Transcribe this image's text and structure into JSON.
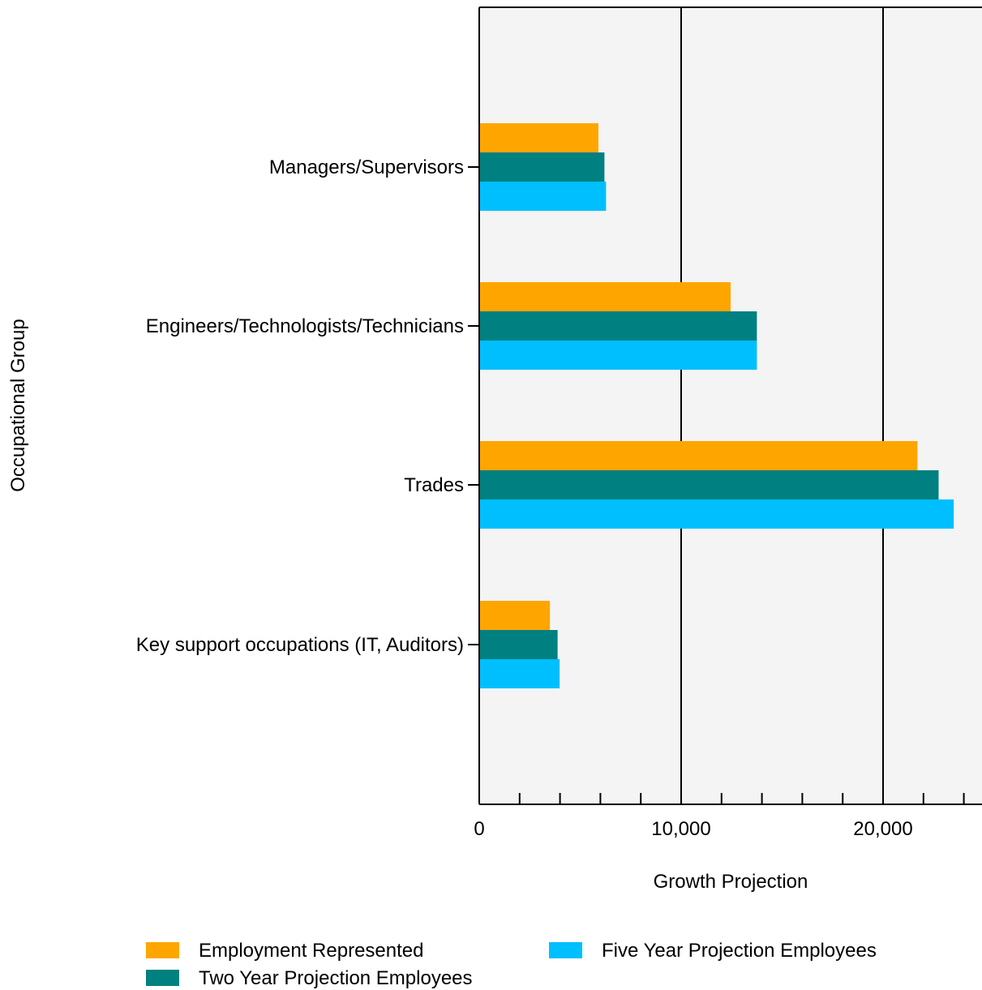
{
  "chart_data": {
    "type": "bar",
    "orientation": "horizontal",
    "xlabel": "Growth Projection",
    "ylabel": "Occupational Group",
    "xlim": [
      0,
      25000
    ],
    "xticks": [
      0,
      10000,
      20000
    ],
    "xtick_labels": [
      "0",
      "10,000",
      "20,000"
    ],
    "grid": true,
    "legend_position": "bottom",
    "categories": [
      "Managers/Supervisors",
      "Engineers/Technologists/Technicians",
      "Trades",
      "Key support occupations (IT, Auditors)"
    ],
    "series": [
      {
        "name": "Employment Represented",
        "color": "#FFA500",
        "values": [
          5900,
          12450,
          21700,
          3500
        ]
      },
      {
        "name": "Two Year Projection Employees",
        "color": "#008080",
        "values": [
          6200,
          13750,
          22750,
          3880
        ]
      },
      {
        "name": "Five Year Projection Employees",
        "color": "#00BFFF",
        "values": [
          6280,
          13750,
          23500,
          3980
        ]
      }
    ]
  }
}
